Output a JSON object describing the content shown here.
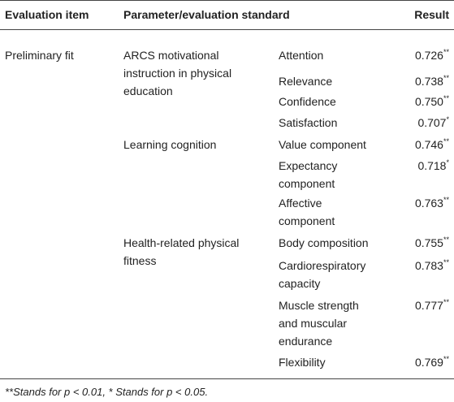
{
  "header": {
    "columns": [
      "Evaluation item",
      "Parameter/evaluation standard",
      "Result"
    ]
  },
  "table": {
    "groups": [
      {
        "item": "Preliminary fit",
        "parameters": [
          {
            "name": "ARCS motivational instruction in physical education",
            "criteria": [
              {
                "name": "Attention",
                "value": "0.726",
                "sig": "**"
              },
              {
                "name": "Relevance",
                "value": "0.738",
                "sig": "**"
              },
              {
                "name": "Confidence",
                "value": "0.750",
                "sig": "**"
              },
              {
                "name": "Satisfaction",
                "value": "0.707",
                "sig": "*"
              }
            ]
          },
          {
            "name": "Learning cognition",
            "criteria": [
              {
                "name": "Value component",
                "value": "0.746",
                "sig": "**"
              },
              {
                "name": "Expectancy component",
                "value": "0.718",
                "sig": "*"
              },
              {
                "name": "Affective component",
                "value": "0.763",
                "sig": "**"
              }
            ]
          },
          {
            "name": "Health-related physical fitness",
            "criteria": [
              {
                "name": "Body composition",
                "value": "0.755",
                "sig": "**"
              },
              {
                "name": "Cardiorespiratory capacity",
                "value": "0.783",
                "sig": "**"
              },
              {
                "name": "Muscle strength and muscular endurance",
                "value": "0.777",
                "sig": "**"
              },
              {
                "name": "Flexibility",
                "value": "0.769",
                "sig": "**"
              }
            ]
          }
        ]
      }
    ]
  },
  "footnote": "**Stands for p < 0.01, * Stands for p < 0.05."
}
